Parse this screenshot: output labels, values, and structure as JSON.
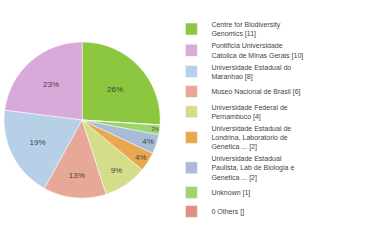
{
  "chart_data": {
    "type": "pie",
    "categories": [
      "Centre for Biodiversity\nGenomics [11]",
      "Pontificia Universidade\nCatolica de Minas Gerais [10]",
      "Universidade Estadual do\nMaranhao [8]",
      "Museo Nacional de Brasil [6]",
      "Universidade Federal de\nPernambuco [4]",
      "Universidade Estadual de\nLondrina, Laboratorio de\nGenetica ... [2]",
      "Universidade Estadual\nPaulista, Lab de Biologia e\nGenetica ... [2]",
      "Unknown [1]",
      "0 Others []"
    ],
    "values": [
      26,
      23,
      19,
      13,
      9,
      4,
      4,
      2,
      0
    ],
    "value_labels": [
      "26%",
      "23%",
      "19%",
      "13%",
      "9%",
      "4%",
      "4%",
      "2%",
      null
    ],
    "colors": [
      "#8dc63f",
      "#d9a9d9",
      "#b8cfe8",
      "#e8a898",
      "#d4de8a",
      "#e8a850",
      "#a8bcd8",
      "#9ed46e",
      "#e09080"
    ],
    "data_labels": true,
    "legend": "right"
  }
}
